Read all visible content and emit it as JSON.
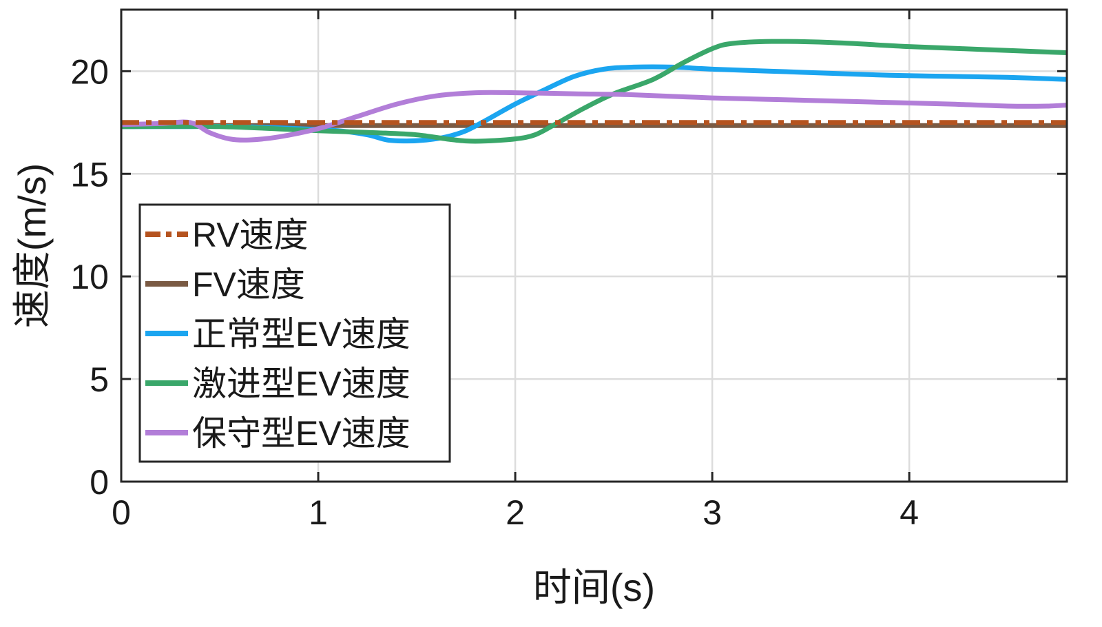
{
  "chart_data": {
    "type": "line",
    "title": "",
    "xlabel": "时间(s)",
    "ylabel": "速度(m/s)",
    "xlim": [
      0,
      4.8
    ],
    "ylim": [
      0,
      23
    ],
    "xticks": [
      0,
      1,
      2,
      3,
      4
    ],
    "yticks": [
      0,
      5,
      10,
      15,
      20
    ],
    "xtick_labels": [
      "0",
      "1",
      "2",
      "3",
      "4"
    ],
    "ytick_labels": [
      "0",
      "5",
      "10",
      "15",
      "20"
    ],
    "grid": true,
    "legend_position": "lower-left",
    "series": [
      {
        "name": "RV速度",
        "color": "#b5531f",
        "dash": "dashdot",
        "x": [
          0,
          4.8
        ],
        "y": [
          17.5,
          17.5
        ]
      },
      {
        "name": "FV速度",
        "color": "#7a5a43",
        "dash": "solid",
        "x": [
          0,
          4.8
        ],
        "y": [
          17.35,
          17.35
        ]
      },
      {
        "name": "正常型EV速度",
        "color": "#1ba5f0",
        "dash": "solid",
        "x": [
          0,
          0.3,
          0.6,
          0.9,
          1.1,
          1.25,
          1.35,
          1.45,
          1.55,
          1.65,
          1.75,
          1.85,
          2.0,
          2.15,
          2.3,
          2.45,
          2.6,
          2.8,
          3.0,
          3.3,
          3.6,
          3.9,
          4.2,
          4.5,
          4.8
        ],
        "y": [
          17.3,
          17.3,
          17.3,
          17.2,
          17.1,
          16.9,
          16.65,
          16.6,
          16.65,
          16.8,
          17.1,
          17.6,
          18.4,
          19.1,
          19.75,
          20.1,
          20.2,
          20.2,
          20.1,
          20.0,
          19.9,
          19.8,
          19.75,
          19.7,
          19.6
        ]
      },
      {
        "name": "激进型EV速度",
        "color": "#3aa76a",
        "dash": "solid",
        "x": [
          0,
          0.5,
          1.0,
          1.3,
          1.5,
          1.65,
          1.75,
          1.85,
          2.0,
          2.1,
          2.2,
          2.35,
          2.5,
          2.7,
          2.85,
          3.0,
          3.1,
          3.3,
          3.6,
          4.0,
          4.4,
          4.8
        ],
        "y": [
          17.3,
          17.3,
          17.1,
          17.0,
          16.9,
          16.7,
          16.6,
          16.6,
          16.7,
          16.9,
          17.4,
          18.2,
          18.9,
          19.6,
          20.4,
          21.1,
          21.35,
          21.45,
          21.4,
          21.2,
          21.05,
          20.9
        ]
      },
      {
        "name": "保守型EV速度",
        "color": "#b27ed8",
        "dash": "solid",
        "x": [
          0,
          0.2,
          0.35,
          0.45,
          0.55,
          0.65,
          0.8,
          1.0,
          1.2,
          1.4,
          1.6,
          1.8,
          2.0,
          2.3,
          2.6,
          3.0,
          3.4,
          3.8,
          4.2,
          4.5,
          4.7,
          4.8
        ],
        "y": [
          17.4,
          17.45,
          17.5,
          17.0,
          16.7,
          16.65,
          16.8,
          17.2,
          17.8,
          18.4,
          18.8,
          18.95,
          18.95,
          18.9,
          18.85,
          18.7,
          18.6,
          18.5,
          18.4,
          18.3,
          18.3,
          18.35
        ]
      }
    ]
  }
}
